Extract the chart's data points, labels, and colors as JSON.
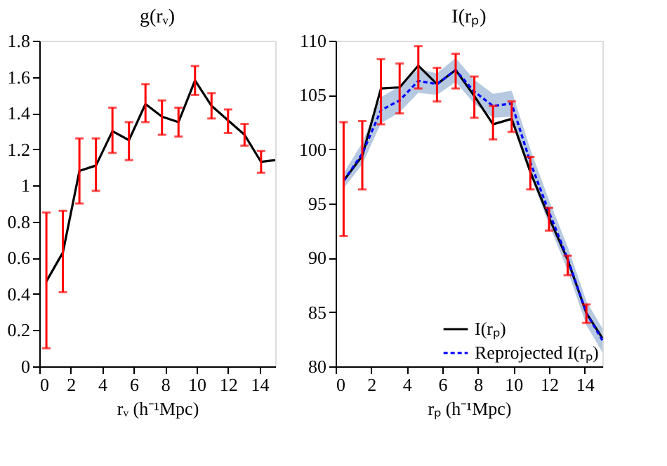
{
  "chart_data": [
    {
      "type": "line",
      "title": "g(rᵥ)",
      "xlabel": "rᵥ (h⁻¹Mpc)",
      "xlim": [
        0,
        15
      ],
      "xticks": [
        0,
        2,
        4,
        6,
        8,
        10,
        12,
        14
      ],
      "ylim": [
        0,
        1.8
      ],
      "yticks": [
        0,
        0.2,
        0.4,
        0.6,
        0.8,
        1,
        1.2,
        1.4,
        1.6,
        1.8
      ],
      "grid": false,
      "legend": false,
      "marker": "none",
      "x": [
        0.45,
        1.5,
        2.55,
        3.6,
        4.65,
        5.7,
        6.75,
        7.8,
        8.85,
        9.9,
        10.95,
        12,
        13.05,
        14.1,
        15
      ],
      "series": [
        {
          "color": "#000000",
          "line_style": "solid",
          "values": [
            0.47,
            0.63,
            1.08,
            1.11,
            1.3,
            1.25,
            1.45,
            1.38,
            1.35,
            1.58,
            1.44,
            1.36,
            1.28,
            1.13,
            1.14
          ],
          "errors": [
            [
              0.1,
              0.85
            ],
            [
              0.41,
              0.86
            ],
            [
              0.9,
              1.26
            ],
            [
              0.97,
              1.26
            ],
            [
              1.18,
              1.43
            ],
            [
              1.14,
              1.35
            ],
            [
              1.35,
              1.56
            ],
            [
              1.28,
              1.47
            ],
            [
              1.27,
              1.43
            ],
            [
              1.5,
              1.66
            ],
            [
              1.37,
              1.51
            ],
            [
              1.29,
              1.42
            ],
            [
              1.22,
              1.34
            ],
            [
              1.07,
              1.19
            ],
            null
          ]
        }
      ]
    },
    {
      "type": "line",
      "title": "I(rₚ)",
      "xlabel": "rₚ (h⁻¹Mpc)",
      "xlim": [
        0,
        15
      ],
      "xticks": [
        0,
        2,
        4,
        6,
        8,
        10,
        12,
        14
      ],
      "ylim": [
        80,
        110
      ],
      "yticks": [
        80,
        85,
        90,
        95,
        100,
        105,
        110
      ],
      "grid": false,
      "legend": "bottom right",
      "marker": "none",
      "x": [
        0.45,
        1.5,
        2.55,
        3.6,
        4.65,
        5.7,
        6.75,
        7.8,
        8.85,
        9.9,
        10.95,
        12,
        13.05,
        14.1,
        15
      ],
      "series": [
        {
          "name": "I(rₚ)",
          "color": "#000000",
          "line_style": "solid",
          "values": [
            97.1,
            99.4,
            105.6,
            105.7,
            107.7,
            106.0,
            107.3,
            104.9,
            102.3,
            102.8,
            97.9,
            93.7,
            89.8,
            84.9,
            82.6
          ],
          "errors": [
            [
              92.0,
              102.5
            ],
            [
              96.3,
              102.6
            ],
            [
              102.3,
              108.3
            ],
            [
              103.3,
              107.9
            ],
            [
              105.6,
              109.5
            ],
            [
              104.4,
              107.5
            ],
            [
              105.6,
              108.8
            ],
            [
              102.9,
              106.7
            ],
            [
              100.9,
              104.0
            ],
            [
              101.6,
              104.4
            ],
            [
              96.3,
              99.3
            ],
            [
              92.5,
              94.6
            ],
            [
              88.4,
              90.2
            ],
            [
              84.0,
              85.7
            ],
            null
          ]
        },
        {
          "name": "Reprojected I(rₚ)",
          "color": "#0000ff",
          "line_style": "dashed",
          "values": [
            97.1,
            99.6,
            103.6,
            104.5,
            106.3,
            106.0,
            107.3,
            105.3,
            104.0,
            104.2,
            98.8,
            94.2,
            89.9,
            84.9,
            82.4
          ],
          "lower": [
            96.4,
            98.6,
            102.4,
            103.4,
            105.2,
            105.0,
            106.2,
            104.2,
            102.9,
            103.0,
            97.6,
            93.1,
            88.8,
            83.8,
            81.3
          ],
          "upper": [
            97.8,
            100.6,
            104.8,
            105.8,
            107.4,
            107.0,
            108.4,
            106.4,
            105.1,
            105.4,
            100.0,
            95.3,
            91.0,
            86.0,
            83.5
          ]
        }
      ]
    }
  ]
}
